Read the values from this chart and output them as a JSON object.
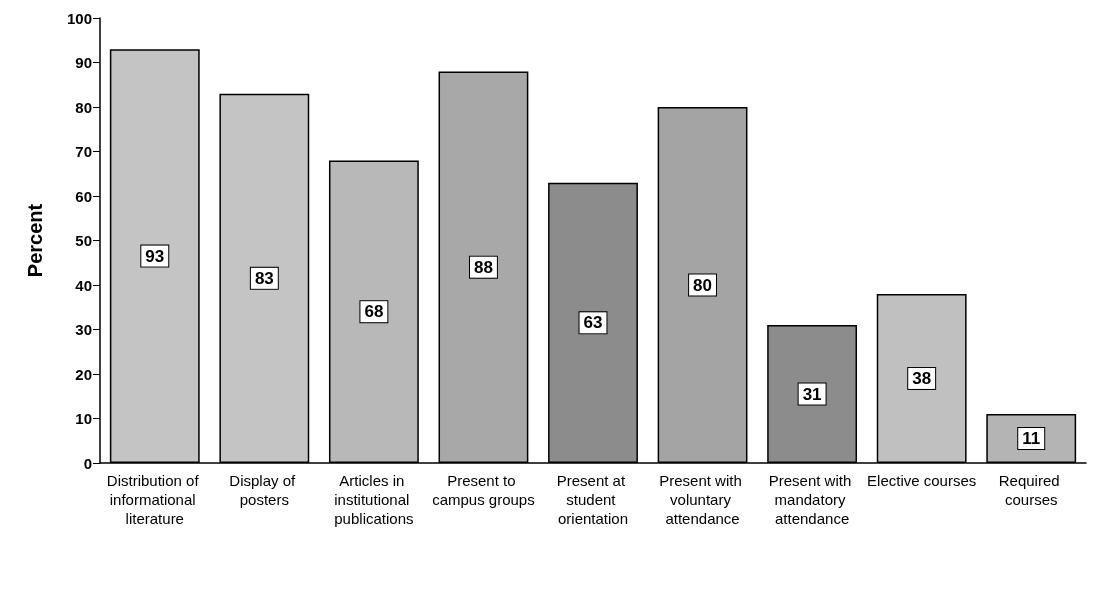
{
  "chart_data": {
    "type": "bar",
    "ylabel": "Percent",
    "categories": [
      "Distribution of informational literature",
      "Display of posters",
      "Articles in institutional publications",
      "Present to campus groups",
      "Present at student orientation",
      "Present with voluntary attendance",
      "Present with mandatory attendance",
      "Elective courses",
      "Required courses"
    ],
    "values": [
      93,
      83,
      68,
      88,
      63,
      80,
      31,
      38,
      11
    ],
    "colors": [
      "#c4c4c4",
      "#c4c4c4",
      "#b8b8b8",
      "#a8a8a8",
      "#8c8c8c",
      "#a4a4a4",
      "#8c8c8c",
      "#c0c0c0",
      "#b4b4b4"
    ],
    "ylim": [
      0,
      100
    ],
    "yticks": [
      0,
      10,
      20,
      30,
      40,
      50,
      60,
      70,
      80,
      90,
      100
    ],
    "grid": false,
    "data_labels": true
  }
}
